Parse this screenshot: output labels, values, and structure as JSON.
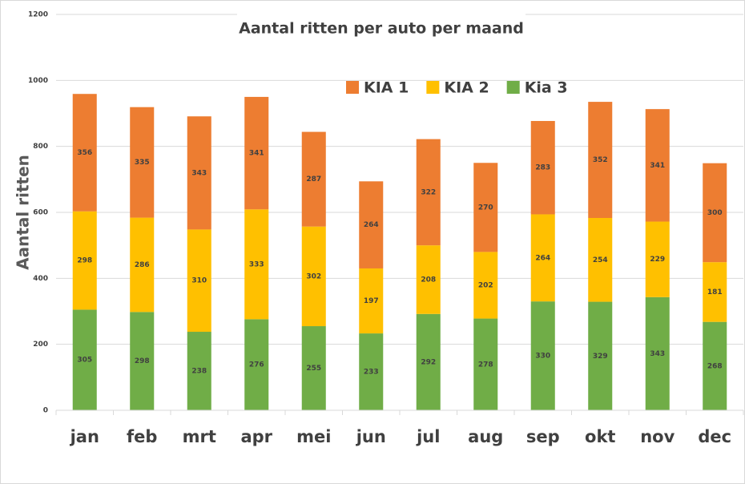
{
  "chart_data": {
    "type": "stacked_bar",
    "title": "Aantal ritten per auto per maand",
    "y_label": "Aantal ritten",
    "categories": [
      "jan",
      "feb",
      "mrt",
      "apr",
      "mei",
      "jun",
      "jul",
      "aug",
      "sep",
      "okt",
      "nov",
      "dec"
    ],
    "series": [
      {
        "name": "KIA 1",
        "color": "#ed7d31",
        "values": [
          356,
          335,
          343,
          341,
          287,
          264,
          322,
          270,
          283,
          352,
          341,
          300
        ]
      },
      {
        "name": "KIA 2",
        "color": "#ffc000",
        "values": [
          298,
          286,
          310,
          333,
          302,
          197,
          208,
          202,
          264,
          254,
          229,
          181
        ]
      },
      {
        "name": "Kia 3",
        "color": "#70ad47",
        "values": [
          305,
          298,
          238,
          276,
          255,
          233,
          292,
          278,
          330,
          329,
          343,
          268
        ]
      }
    ],
    "ylim": [
      0,
      1200
    ],
    "yticks": [
      0,
      200,
      400,
      600,
      800,
      1000,
      1200
    ],
    "grid": true,
    "legend": "top"
  }
}
